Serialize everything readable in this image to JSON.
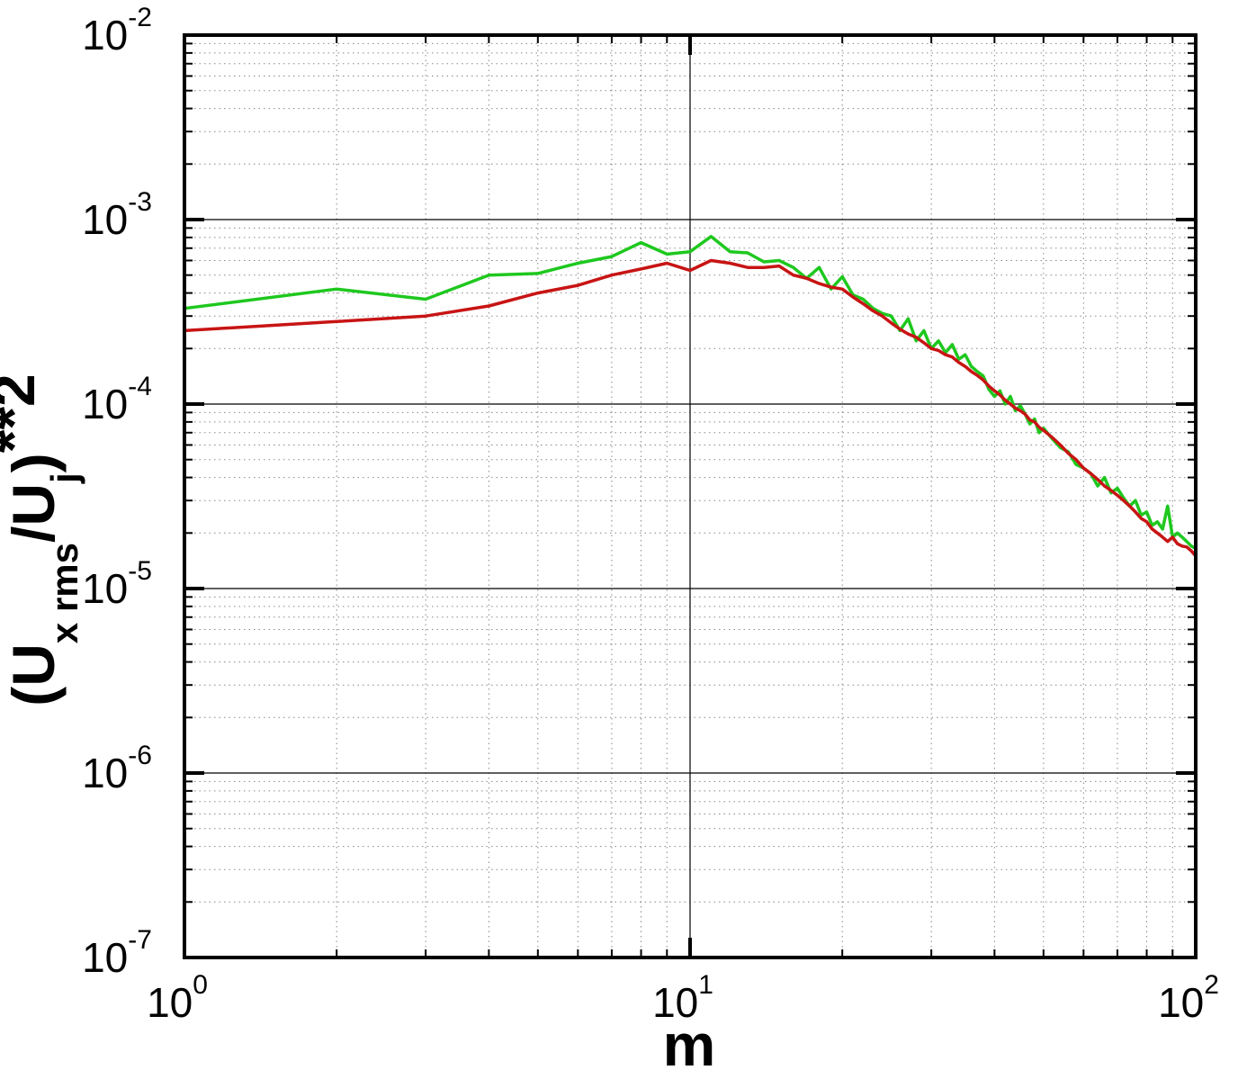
{
  "chart_data": {
    "type": "line",
    "xlabel": "m",
    "ylabel_parts": {
      "open": "(U",
      "sub1": "x rms",
      "slash": "/U",
      "sub2": "j",
      "close": ")",
      "power": "**2"
    },
    "x_scale": "log",
    "y_scale": "log",
    "xlim": [
      1,
      100
    ],
    "ylim": [
      1e-07,
      0.01
    ],
    "x_ticks": [
      {
        "value": 1,
        "base": "10",
        "exp": "0"
      },
      {
        "value": 10,
        "base": "10",
        "exp": "1"
      },
      {
        "value": 100,
        "base": "10",
        "exp": "2"
      }
    ],
    "y_ticks": [
      {
        "value": 1e-07,
        "base": "10",
        "exp": "-7"
      },
      {
        "value": 1e-06,
        "base": "10",
        "exp": "-6"
      },
      {
        "value": 1e-05,
        "base": "10",
        "exp": "-5"
      },
      {
        "value": 0.0001,
        "base": "10",
        "exp": "-4"
      },
      {
        "value": 0.001,
        "base": "10",
        "exp": "-3"
      },
      {
        "value": 0.01,
        "base": "10",
        "exp": "-2"
      }
    ],
    "grid": true,
    "series": [
      {
        "color": "#1ec81e",
        "x": [
          1,
          2,
          3,
          4,
          5,
          6,
          7,
          8,
          9,
          10,
          11,
          12,
          13,
          14,
          15,
          16,
          17,
          18,
          19,
          20,
          21,
          22,
          23,
          24,
          25,
          26,
          27,
          28,
          29,
          30,
          31,
          32,
          33,
          34,
          35,
          36,
          37,
          38,
          39,
          40,
          41,
          42,
          43,
          44,
          45,
          46,
          47,
          48,
          49,
          50,
          52,
          54,
          56,
          58,
          60,
          62,
          64,
          66,
          68,
          70,
          72,
          74,
          76,
          78,
          80,
          82,
          84,
          86,
          88,
          90,
          92,
          94,
          96,
          98,
          100
        ],
        "y": [
          0.00033,
          0.00042,
          0.00037,
          0.0005,
          0.00051,
          0.00058,
          0.00063,
          0.00075,
          0.00065,
          0.00067,
          0.00081,
          0.00067,
          0.00066,
          0.00059,
          0.0006,
          0.00055,
          0.00048,
          0.00055,
          0.00042,
          0.00049,
          0.00039,
          0.00037,
          0.00033,
          0.00031,
          0.0003,
          0.00025,
          0.00029,
          0.00022,
          0.00025,
          0.0002,
          0.00022,
          0.00019,
          0.00021,
          0.000175,
          0.000185,
          0.00016,
          0.00015,
          0.000142,
          0.00012,
          0.00011,
          0.000118,
          0.0001,
          0.00011,
          9.2e-05,
          9.8e-05,
          8.8e-05,
          7.8e-05,
          8.3e-05,
          7e-05,
          7.4e-05,
          6.5e-05,
          5.8e-05,
          5.5e-05,
          4.7e-05,
          4.5e-05,
          4.2e-05,
          3.6e-05,
          4e-05,
          3.3e-05,
          3.5e-05,
          3.1e-05,
          2.8e-05,
          3e-05,
          2.5e-05,
          2.6e-05,
          2.2e-05,
          2.3e-05,
          2.1e-05,
          2.8e-05,
          1.9e-05,
          2e-05,
          1.9e-05,
          1.8e-05,
          1.7e-05,
          1.65e-05
        ]
      },
      {
        "color": "#c81414",
        "x": [
          1,
          2,
          3,
          4,
          5,
          6,
          7,
          8,
          9,
          10,
          11,
          12,
          13,
          14,
          15,
          16,
          17,
          18,
          19,
          20,
          21,
          22,
          23,
          24,
          25,
          26,
          27,
          28,
          29,
          30,
          31,
          32,
          33,
          34,
          35,
          36,
          37,
          38,
          39,
          40,
          41,
          42,
          43,
          44,
          45,
          46,
          47,
          48,
          49,
          50,
          52,
          54,
          56,
          58,
          60,
          62,
          64,
          66,
          68,
          70,
          72,
          74,
          76,
          78,
          80,
          82,
          84,
          86,
          88,
          90,
          92,
          94,
          96,
          98,
          100
        ],
        "y": [
          0.00025,
          0.00028,
          0.0003,
          0.00034,
          0.0004,
          0.00044,
          0.0005,
          0.00054,
          0.00058,
          0.00053,
          0.0006,
          0.00058,
          0.00055,
          0.00055,
          0.00056,
          0.0005,
          0.00048,
          0.00045,
          0.00043,
          0.00042,
          0.00038,
          0.00035,
          0.00032,
          0.0003,
          0.000275,
          0.000255,
          0.00024,
          0.00023,
          0.000215,
          0.0002,
          0.000195,
          0.000185,
          0.00018,
          0.000168,
          0.00016,
          0.00015,
          0.000143,
          0.000135,
          0.000125,
          0.000118,
          0.000112,
          0.000105,
          0.0001,
          9.5e-05,
          9.2e-05,
          8.8e-05,
          8.2e-05,
          8e-05,
          7.5e-05,
          7.2e-05,
          6.6e-05,
          6e-05,
          5.4e-05,
          5e-05,
          4.5e-05,
          4.2e-05,
          3.9e-05,
          3.6e-05,
          3.4e-05,
          3.2e-05,
          3e-05,
          2.8e-05,
          2.6e-05,
          2.4e-05,
          2.3e-05,
          2.1e-05,
          2e-05,
          1.9e-05,
          1.8e-05,
          1.9e-05,
          1.75e-05,
          1.7e-05,
          1.68e-05,
          1.6e-05,
          1.5e-05
        ]
      }
    ]
  }
}
